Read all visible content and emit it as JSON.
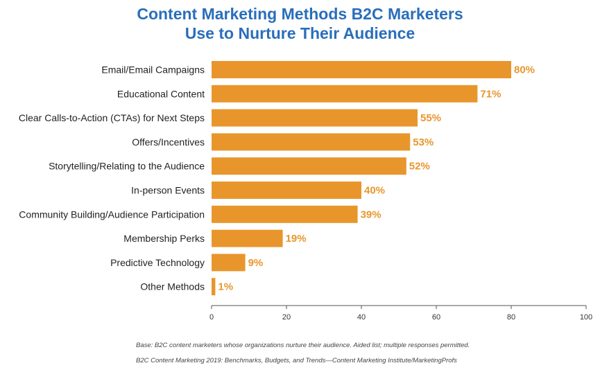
{
  "title_line1": "Content Marketing Methods B2C Marketers",
  "title_line2": "Use to Nurture Their Audience",
  "colors": {
    "bar": "#e8962c",
    "title": "#2a6ebb",
    "value_label": "#e8962c"
  },
  "chart_data": {
    "type": "bar",
    "orientation": "horizontal",
    "categories": [
      "Email/Email Campaigns",
      "Educational Content",
      "Clear Calls-to-Action (CTAs) for Next Steps",
      "Offers/Incentives",
      "Storytelling/Relating to the Audience",
      "In-person Events",
      "Community Building/Audience Participation",
      "Membership Perks",
      "Predictive Technology",
      "Other Methods"
    ],
    "values": [
      80,
      71,
      55,
      53,
      52,
      40,
      39,
      19,
      9,
      1
    ],
    "value_labels": [
      "80%",
      "71%",
      "55%",
      "53%",
      "52%",
      "40%",
      "39%",
      "19%",
      "9%",
      "1%"
    ],
    "xlim": [
      0,
      100
    ],
    "xticks": [
      0,
      20,
      40,
      60,
      80,
      100
    ],
    "grid": false
  },
  "footnote_base": "Base: B2C content marketers whose organizations nurture their audience. Aided list; multiple responses permitted.",
  "footnote_source": "B2C Content Marketing 2019: Benchmarks, Budgets, and Trends—Content Marketing Institute/MarketingProfs"
}
